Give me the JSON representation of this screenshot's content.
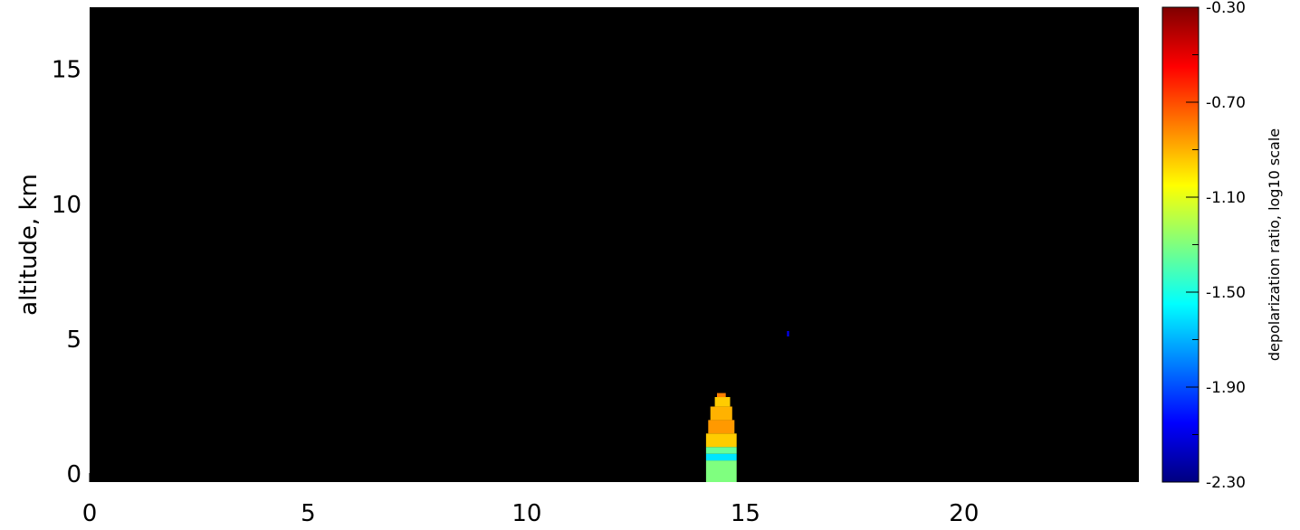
{
  "chart_data": {
    "type": "heatmap",
    "title": "",
    "xlabel": "",
    "ylabel": "altitude, km",
    "xlim": [
      0,
      24
    ],
    "ylim": [
      -0.3,
      17.3
    ],
    "x_ticks": [
      0,
      5,
      10,
      15,
      20
    ],
    "y_ticks": [
      0,
      5,
      10,
      15
    ],
    "background_color": "#000000",
    "colorbar": {
      "label": "depolarization ratio, log10 scale",
      "range": [
        -2.3,
        -0.3
      ],
      "ticks": [
        "-0.30",
        "-0.70",
        "-1.10",
        "-1.50",
        "-1.90",
        "-2.30"
      ],
      "tick_values": [
        -0.3,
        -0.7,
        -1.1,
        -1.5,
        -1.9,
        -2.3
      ],
      "colormap": "jet",
      "stops": [
        "#00007f",
        "#0000ff",
        "#007fff",
        "#00ffff",
        "#7fff7f",
        "#ffff00",
        "#ff7f00",
        "#ff0000",
        "#7f0000"
      ]
    },
    "features": [
      {
        "x": [
          14.1,
          14.8
        ],
        "y": [
          -0.3,
          0.5
        ],
        "value": -1.3
      },
      {
        "x": [
          14.1,
          14.8
        ],
        "y": [
          0.5,
          0.75
        ],
        "value": -1.6
      },
      {
        "x": [
          14.1,
          14.8
        ],
        "y": [
          0.75,
          1.0
        ],
        "value": -1.35
      },
      {
        "x": [
          14.1,
          14.8
        ],
        "y": [
          1.0,
          1.5
        ],
        "value": -0.95
      },
      {
        "x": [
          14.15,
          14.75
        ],
        "y": [
          1.5,
          2.0
        ],
        "value": -0.85
      },
      {
        "x": [
          14.2,
          14.7
        ],
        "y": [
          2.0,
          2.5
        ],
        "value": -0.9
      },
      {
        "x": [
          14.3,
          14.65
        ],
        "y": [
          2.5,
          2.85
        ],
        "value": -0.95
      },
      {
        "x": [
          14.35,
          14.55
        ],
        "y": [
          2.85,
          3.0
        ],
        "value": -0.8
      },
      {
        "x": [
          15.95,
          16.0
        ],
        "y": [
          5.1,
          5.3
        ],
        "value": -2.1
      }
    ]
  }
}
